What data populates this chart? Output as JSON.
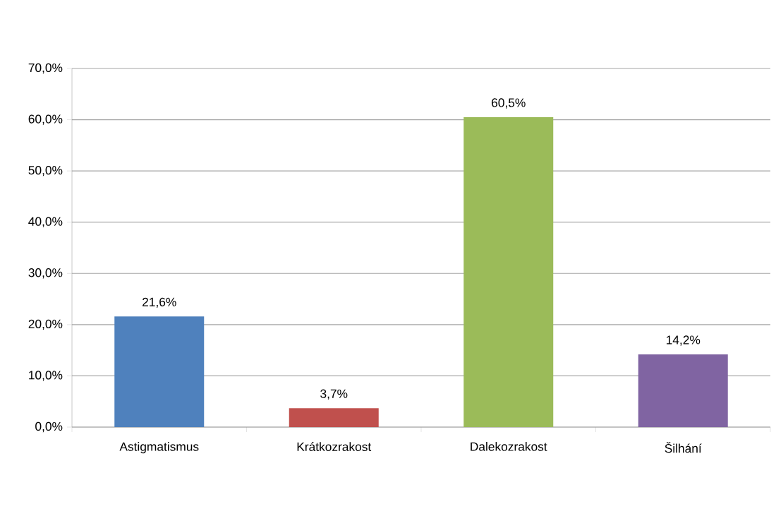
{
  "chart_data": {
    "type": "bar",
    "categories": [
      "Astigmatismus",
      "Krátkozrakost",
      "Dalekozrakost",
      "Šilhání"
    ],
    "values": [
      21.6,
      3.7,
      60.5,
      14.2
    ],
    "colors": [
      "#4f81bd",
      "#c0504d",
      "#9bbb59",
      "#8064a2"
    ],
    "value_labels": [
      "21,6%",
      "3,7%",
      "60,5%",
      "14,2%"
    ],
    "ylim": [
      0,
      70
    ],
    "yticks": [
      {
        "value": 0,
        "label": "0,0%"
      },
      {
        "value": 10,
        "label": "10,0%"
      },
      {
        "value": 20,
        "label": "20,0%"
      },
      {
        "value": 30,
        "label": "30,0%"
      },
      {
        "value": 40,
        "label": "40,0%"
      },
      {
        "value": 50,
        "label": "50,0%"
      },
      {
        "value": 60,
        "label": "60,0%"
      },
      {
        "value": 70,
        "label": "70,0%"
      }
    ],
    "grid": "y"
  }
}
